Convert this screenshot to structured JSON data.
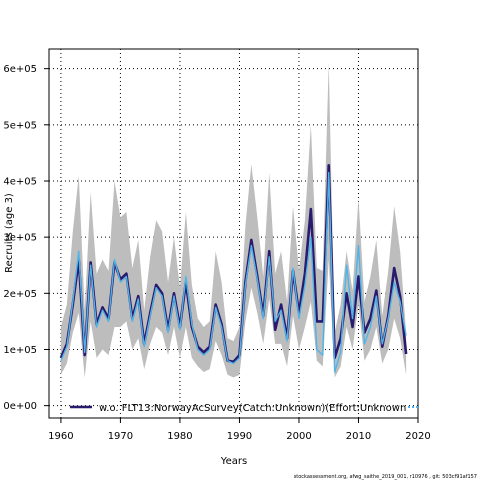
{
  "chart_data": {
    "type": "line",
    "xlabel": "Years",
    "ylabel": "Recruits (age 3)",
    "xlim": [
      1958,
      2020
    ],
    "ylim": [
      -22000,
      635000
    ],
    "x_ticks": [
      1960,
      1970,
      1980,
      1990,
      2000,
      2010,
      2020
    ],
    "y_ticks": [
      {
        "value": 0,
        "label": "0e+00"
      },
      {
        "value": 100000,
        "label": "1e+05"
      },
      {
        "value": 200000,
        "label": "2e+05"
      },
      {
        "value": 300000,
        "label": "3e+05"
      },
      {
        "value": 400000,
        "label": "4e+05"
      },
      {
        "value": 500000,
        "label": "5e+05"
      },
      {
        "value": 600000,
        "label": "6e+05"
      }
    ],
    "grid": true,
    "legend_position": "bottom",
    "x": [
      1960,
      1961,
      1962,
      1963,
      1964,
      1965,
      1966,
      1967,
      1968,
      1969,
      1970,
      1971,
      1972,
      1973,
      1974,
      1975,
      1976,
      1977,
      1978,
      1979,
      1980,
      1981,
      1982,
      1983,
      1984,
      1985,
      1986,
      1987,
      1988,
      1989,
      1990,
      1991,
      1992,
      1993,
      1994,
      1995,
      1996,
      1997,
      1998,
      1999,
      2000,
      2001,
      2002,
      2003,
      2004,
      2005,
      2006,
      2007,
      2008,
      2009,
      2010,
      2011,
      2012,
      2013,
      2014,
      2015,
      2016,
      2017,
      2018
    ],
    "series": [
      {
        "name": "w.o. FLT13:NorwayAcSurvey(Catch:Unknown)(Effort:Unknown",
        "color": "#2a1a6e",
        "values": [
          85000,
          110000,
          180000,
          260000,
          90000,
          255000,
          145000,
          175000,
          155000,
          255000,
          225000,
          235000,
          155000,
          195000,
          110000,
          165000,
          215000,
          200000,
          135000,
          200000,
          140000,
          220000,
          140000,
          105000,
          95000,
          105000,
          180000,
          145000,
          80000,
          78000,
          90000,
          220000,
          295000,
          230000,
          160000,
          275000,
          135000,
          180000,
          120000,
          240000,
          165000,
          235000,
          350000,
          150000,
          150000,
          428000,
          85000,
          120000,
          200000,
          140000,
          230000,
          130000,
          155000,
          205000,
          105000,
          160000,
          245000,
          195000,
          92000
        ]
      },
      {
        "name": "",
        "color": "#4fb3e8",
        "values": [
          80000,
          105000,
          185000,
          275000,
          95000,
          250000,
          140000,
          170000,
          150000,
          260000,
          220000,
          230000,
          150000,
          190000,
          105000,
          160000,
          210000,
          195000,
          130000,
          195000,
          135000,
          230000,
          145000,
          100000,
          90000,
          100000,
          175000,
          140000,
          80000,
          75000,
          85000,
          215000,
          285000,
          225000,
          155000,
          265000,
          150000,
          170000,
          115000,
          245000,
          155000,
          215000,
          300000,
          100000,
          90000,
          415000,
          60000,
          95000,
          250000,
          155000,
          285000,
          110000,
          140000,
          195000,
          110000,
          155000,
          220000,
          185000,
          125000
        ]
      }
    ],
    "ci_lower": [
      55000,
      75000,
      130000,
      165000,
      50000,
      150000,
      85000,
      100000,
      90000,
      140000,
      140000,
      150000,
      100000,
      120000,
      65000,
      110000,
      140000,
      130000,
      90000,
      140000,
      85000,
      140000,
      85000,
      70000,
      60000,
      65000,
      115000,
      90000,
      55000,
      50000,
      55000,
      150000,
      210000,
      165000,
      110000,
      190000,
      110000,
      110000,
      70000,
      160000,
      100000,
      140000,
      185000,
      80000,
      70000,
      260000,
      50000,
      70000,
      140000,
      100000,
      180000,
      80000,
      100000,
      140000,
      75000,
      100000,
      155000,
      120000,
      55000
    ],
    "ci_upper": [
      140000,
      180000,
      310000,
      410000,
      170000,
      380000,
      235000,
      260000,
      240000,
      400000,
      335000,
      345000,
      245000,
      295000,
      170000,
      265000,
      330000,
      310000,
      220000,
      300000,
      210000,
      345000,
      215000,
      155000,
      140000,
      150000,
      275000,
      220000,
      120000,
      115000,
      140000,
      320000,
      430000,
      335000,
      230000,
      415000,
      235000,
      275000,
      185000,
      355000,
      240000,
      330000,
      500000,
      245000,
      240000,
      610000,
      130000,
      180000,
      275000,
      205000,
      370000,
      185000,
      230000,
      295000,
      160000,
      240000,
      355000,
      275000,
      130000
    ]
  },
  "footer": "stockassessment.org, afwg_saithe_2019_001, r10976 , git: 503cf91af157"
}
